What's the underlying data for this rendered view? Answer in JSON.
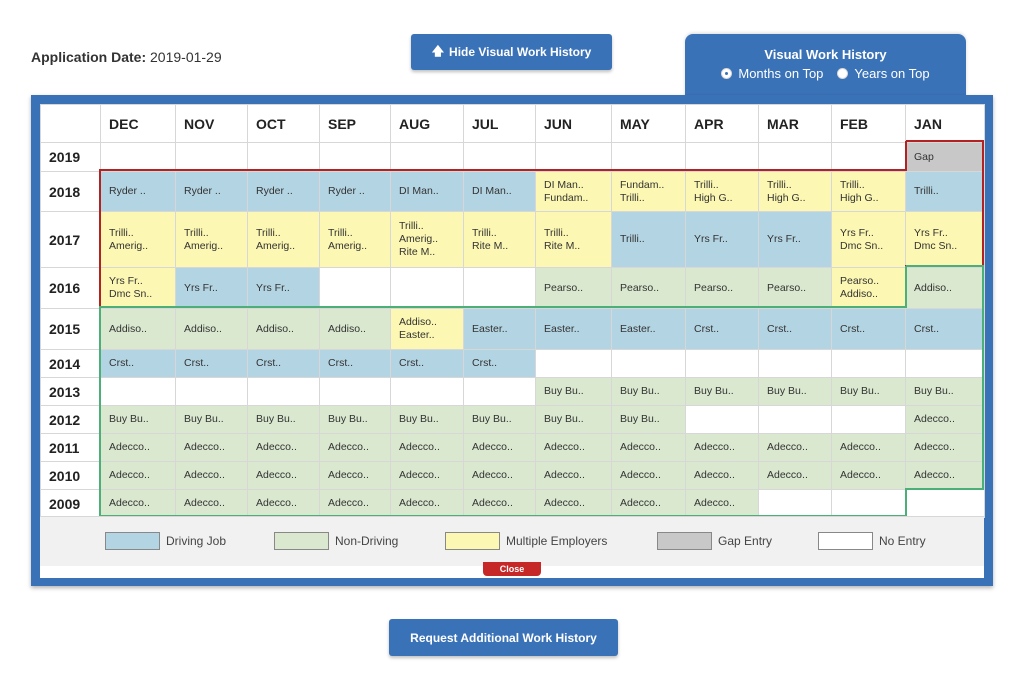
{
  "application": {
    "label": "Application Date:",
    "value": "2019-01-29"
  },
  "buttons": {
    "hide_history": "Hide Visual Work History",
    "request_history": "Request Additional Work History",
    "close": "Close"
  },
  "view_tab": {
    "title": "Visual Work History",
    "options": [
      {
        "label": "Months on Top",
        "selected": true
      },
      {
        "label": "Years on Top",
        "selected": false
      }
    ]
  },
  "grid": {
    "months": [
      "DEC",
      "NOV",
      "OCT",
      "SEP",
      "AUG",
      "JUL",
      "JUN",
      "MAY",
      "APR",
      "MAR",
      "FEB",
      "JAN"
    ],
    "rows": [
      {
        "year": "2019",
        "cells": [
          {
            "t": "e",
            "text": []
          },
          {
            "t": "e",
            "text": []
          },
          {
            "t": "e",
            "text": []
          },
          {
            "t": "e",
            "text": []
          },
          {
            "t": "e",
            "text": []
          },
          {
            "t": "e",
            "text": []
          },
          {
            "t": "e",
            "text": []
          },
          {
            "t": "e",
            "text": []
          },
          {
            "t": "e",
            "text": []
          },
          {
            "t": "e",
            "text": []
          },
          {
            "t": "e",
            "text": []
          },
          {
            "t": "g",
            "text": [
              "Gap"
            ]
          }
        ]
      },
      {
        "year": "2018",
        "cells": [
          {
            "t": "d",
            "text": [
              "Ryder .."
            ]
          },
          {
            "t": "d",
            "text": [
              "Ryder .."
            ]
          },
          {
            "t": "d",
            "text": [
              "Ryder .."
            ]
          },
          {
            "t": "d",
            "text": [
              "Ryder .."
            ]
          },
          {
            "t": "d",
            "text": [
              "DI Man.."
            ]
          },
          {
            "t": "d",
            "text": [
              "DI Man.."
            ]
          },
          {
            "t": "m",
            "text": [
              "DI Man..",
              "Fundam.."
            ]
          },
          {
            "t": "m",
            "text": [
              "Fundam..",
              "Trilli.."
            ]
          },
          {
            "t": "m",
            "text": [
              "Trilli..",
              "High G.."
            ]
          },
          {
            "t": "m",
            "text": [
              "Trilli..",
              "High G.."
            ]
          },
          {
            "t": "m",
            "text": [
              "Trilli..",
              "High G.."
            ]
          },
          {
            "t": "d",
            "text": [
              "Trilli.."
            ]
          }
        ]
      },
      {
        "year": "2017",
        "cells": [
          {
            "t": "m",
            "text": [
              "Trilli..",
              "Amerig.."
            ]
          },
          {
            "t": "m",
            "text": [
              "Trilli..",
              "Amerig.."
            ]
          },
          {
            "t": "m",
            "text": [
              "Trilli..",
              "Amerig.."
            ]
          },
          {
            "t": "m",
            "text": [
              "Trilli..",
              "Amerig.."
            ]
          },
          {
            "t": "m",
            "text": [
              "Trilli..",
              "Amerig..",
              "Rite M.."
            ]
          },
          {
            "t": "m",
            "text": [
              "Trilli..",
              "Rite M.."
            ]
          },
          {
            "t": "m",
            "text": [
              "Trilli..",
              "Rite M.."
            ]
          },
          {
            "t": "d",
            "text": [
              "Trilli.."
            ]
          },
          {
            "t": "d",
            "text": [
              "Yrs Fr.."
            ]
          },
          {
            "t": "d",
            "text": [
              "Yrs Fr.."
            ]
          },
          {
            "t": "m",
            "text": [
              "Yrs Fr..",
              "Dmc Sn.."
            ]
          },
          {
            "t": "m",
            "text": [
              "Yrs Fr..",
              "Dmc Sn.."
            ]
          }
        ]
      },
      {
        "year": "2016",
        "cells": [
          {
            "t": "m",
            "text": [
              "Yrs Fr..",
              "Dmc Sn.."
            ]
          },
          {
            "t": "d",
            "text": [
              "Yrs Fr.."
            ]
          },
          {
            "t": "d",
            "text": [
              "Yrs Fr.."
            ]
          },
          {
            "t": "e",
            "text": []
          },
          {
            "t": "e",
            "text": []
          },
          {
            "t": "e",
            "text": []
          },
          {
            "t": "n",
            "text": [
              "Pearso.."
            ]
          },
          {
            "t": "n",
            "text": [
              "Pearso.."
            ]
          },
          {
            "t": "n",
            "text": [
              "Pearso.."
            ]
          },
          {
            "t": "n",
            "text": [
              "Pearso.."
            ]
          },
          {
            "t": "m",
            "text": [
              "Pearso..",
              "Addiso.."
            ]
          },
          {
            "t": "n",
            "text": [
              "Addiso.."
            ]
          }
        ]
      },
      {
        "year": "2015",
        "cells": [
          {
            "t": "n",
            "text": [
              "Addiso.."
            ]
          },
          {
            "t": "n",
            "text": [
              "Addiso.."
            ]
          },
          {
            "t": "n",
            "text": [
              "Addiso.."
            ]
          },
          {
            "t": "n",
            "text": [
              "Addiso.."
            ]
          },
          {
            "t": "m",
            "text": [
              "Addiso..",
              "Easter.."
            ]
          },
          {
            "t": "d",
            "text": [
              "Easter.."
            ]
          },
          {
            "t": "d",
            "text": [
              "Easter.."
            ]
          },
          {
            "t": "d",
            "text": [
              "Easter.."
            ]
          },
          {
            "t": "d",
            "text": [
              "Crst.."
            ]
          },
          {
            "t": "d",
            "text": [
              "Crst.."
            ]
          },
          {
            "t": "d",
            "text": [
              "Crst.."
            ]
          },
          {
            "t": "d",
            "text": [
              "Crst.."
            ]
          }
        ]
      },
      {
        "year": "2014",
        "cells": [
          {
            "t": "d",
            "text": [
              "Crst.."
            ]
          },
          {
            "t": "d",
            "text": [
              "Crst.."
            ]
          },
          {
            "t": "d",
            "text": [
              "Crst.."
            ]
          },
          {
            "t": "d",
            "text": [
              "Crst.."
            ]
          },
          {
            "t": "d",
            "text": [
              "Crst.."
            ]
          },
          {
            "t": "d",
            "text": [
              "Crst.."
            ]
          },
          {
            "t": "e",
            "text": []
          },
          {
            "t": "e",
            "text": []
          },
          {
            "t": "e",
            "text": []
          },
          {
            "t": "e",
            "text": []
          },
          {
            "t": "e",
            "text": []
          },
          {
            "t": "e",
            "text": []
          }
        ]
      },
      {
        "year": "2013",
        "cells": [
          {
            "t": "e",
            "text": []
          },
          {
            "t": "e",
            "text": []
          },
          {
            "t": "e",
            "text": []
          },
          {
            "t": "e",
            "text": []
          },
          {
            "t": "e",
            "text": []
          },
          {
            "t": "e",
            "text": []
          },
          {
            "t": "n",
            "text": [
              "Buy Bu.."
            ]
          },
          {
            "t": "n",
            "text": [
              "Buy Bu.."
            ]
          },
          {
            "t": "n",
            "text": [
              "Buy Bu.."
            ]
          },
          {
            "t": "n",
            "text": [
              "Buy Bu.."
            ]
          },
          {
            "t": "n",
            "text": [
              "Buy Bu.."
            ]
          },
          {
            "t": "n",
            "text": [
              "Buy Bu.."
            ]
          }
        ]
      },
      {
        "year": "2012",
        "cells": [
          {
            "t": "n",
            "text": [
              "Buy Bu.."
            ]
          },
          {
            "t": "n",
            "text": [
              "Buy Bu.."
            ]
          },
          {
            "t": "n",
            "text": [
              "Buy Bu.."
            ]
          },
          {
            "t": "n",
            "text": [
              "Buy Bu.."
            ]
          },
          {
            "t": "n",
            "text": [
              "Buy Bu.."
            ]
          },
          {
            "t": "n",
            "text": [
              "Buy Bu.."
            ]
          },
          {
            "t": "n",
            "text": [
              "Buy Bu.."
            ]
          },
          {
            "t": "n",
            "text": [
              "Buy Bu.."
            ]
          },
          {
            "t": "e",
            "text": []
          },
          {
            "t": "e",
            "text": []
          },
          {
            "t": "e",
            "text": []
          },
          {
            "t": "n",
            "text": [
              "Adecco.."
            ]
          }
        ]
      },
      {
        "year": "2011",
        "cells": [
          {
            "t": "n",
            "text": [
              "Adecco.."
            ]
          },
          {
            "t": "n",
            "text": [
              "Adecco.."
            ]
          },
          {
            "t": "n",
            "text": [
              "Adecco.."
            ]
          },
          {
            "t": "n",
            "text": [
              "Adecco.."
            ]
          },
          {
            "t": "n",
            "text": [
              "Adecco.."
            ]
          },
          {
            "t": "n",
            "text": [
              "Adecco.."
            ]
          },
          {
            "t": "n",
            "text": [
              "Adecco.."
            ]
          },
          {
            "t": "n",
            "text": [
              "Adecco.."
            ]
          },
          {
            "t": "n",
            "text": [
              "Adecco.."
            ]
          },
          {
            "t": "n",
            "text": [
              "Adecco.."
            ]
          },
          {
            "t": "n",
            "text": [
              "Adecco.."
            ]
          },
          {
            "t": "n",
            "text": [
              "Adecco.."
            ]
          }
        ]
      },
      {
        "year": "2010",
        "cells": [
          {
            "t": "n",
            "text": [
              "Adecco.."
            ]
          },
          {
            "t": "n",
            "text": [
              "Adecco.."
            ]
          },
          {
            "t": "n",
            "text": [
              "Adecco.."
            ]
          },
          {
            "t": "n",
            "text": [
              "Adecco.."
            ]
          },
          {
            "t": "n",
            "text": [
              "Adecco.."
            ]
          },
          {
            "t": "n",
            "text": [
              "Adecco.."
            ]
          },
          {
            "t": "n",
            "text": [
              "Adecco.."
            ]
          },
          {
            "t": "n",
            "text": [
              "Adecco.."
            ]
          },
          {
            "t": "n",
            "text": [
              "Adecco.."
            ]
          },
          {
            "t": "n",
            "text": [
              "Adecco.."
            ]
          },
          {
            "t": "n",
            "text": [
              "Adecco.."
            ]
          },
          {
            "t": "n",
            "text": [
              "Adecco.."
            ]
          }
        ]
      },
      {
        "year": "2009",
        "cells": [
          {
            "t": "n",
            "text": [
              "Adecco.."
            ]
          },
          {
            "t": "n",
            "text": [
              "Adecco.."
            ]
          },
          {
            "t": "n",
            "text": [
              "Adecco.."
            ]
          },
          {
            "t": "n",
            "text": [
              "Adecco.."
            ]
          },
          {
            "t": "n",
            "text": [
              "Adecco.."
            ]
          },
          {
            "t": "n",
            "text": [
              "Adecco.."
            ]
          },
          {
            "t": "n",
            "text": [
              "Adecco.."
            ]
          },
          {
            "t": "n",
            "text": [
              "Adecco.."
            ]
          },
          {
            "t": "n",
            "text": [
              "Adecco.."
            ]
          },
          {
            "t": "e",
            "text": []
          },
          {
            "t": "e",
            "text": []
          },
          {
            "t": "e",
            "text": []
          }
        ]
      }
    ]
  },
  "legend": [
    {
      "key": "d",
      "label": "Driving Job",
      "color": "#b3d4e2"
    },
    {
      "key": "n",
      "label": "Non-Driving",
      "color": "#dae8cf"
    },
    {
      "key": "m",
      "label": "Multiple Employers",
      "color": "#fcf7b2"
    },
    {
      "key": "g",
      "label": "Gap Entry",
      "color": "#c8c8c8"
    },
    {
      "key": "e",
      "label": "No Entry",
      "color": "#ffffff"
    }
  ],
  "colors": {
    "accent": "#3a72b8",
    "close": "#c62828",
    "period_red": "#b22222",
    "period_green": "#4caf78"
  }
}
